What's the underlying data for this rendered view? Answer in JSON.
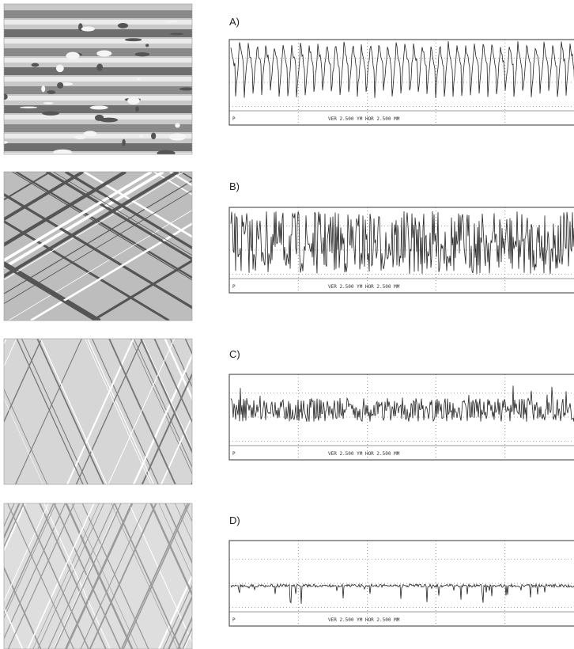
{
  "panels": [
    {
      "label": "A)",
      "marker": "P",
      "scale": "VER 2.500 YM   HOR 2.500 MM"
    },
    {
      "label": "B)",
      "marker": "P",
      "scale": "VER 2.500 YM   HOR 2.500 MM"
    },
    {
      "label": "C)",
      "marker": "P",
      "scale": "VER 2.500 YM   HOR 2.500 MM"
    },
    {
      "label": "D)",
      "marker": "P",
      "scale": "VER 2.500 YM   HOR 2.500 MM"
    }
  ]
}
